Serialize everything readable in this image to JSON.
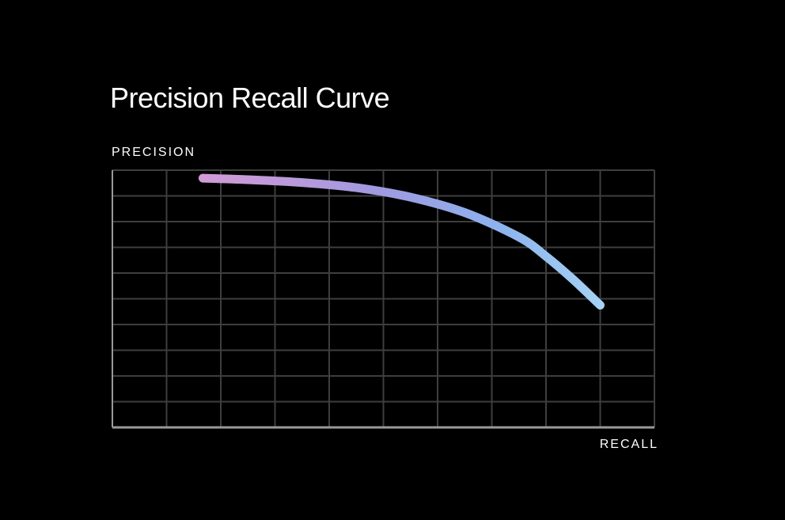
{
  "chart_data": {
    "type": "line",
    "title": "Precision Recall Curve",
    "xlabel": "RECALL",
    "ylabel": "PRECISION",
    "xlim": [
      0,
      1
    ],
    "ylim": [
      0,
      1
    ],
    "grid": true,
    "legend": "none",
    "series": [
      {
        "x": [
          0.167,
          0.25,
          0.35,
          0.45,
          0.55,
          0.65,
          0.75,
          0.8,
          0.85,
          0.9
        ],
        "y": [
          0.969,
          0.963,
          0.952,
          0.932,
          0.895,
          0.835,
          0.74,
          0.665,
          0.575,
          0.475
        ]
      }
    ],
    "gradient_colors": [
      "#d29ad6",
      "#9e9ae0",
      "#8db3ee",
      "#a6d2f4"
    ]
  }
}
